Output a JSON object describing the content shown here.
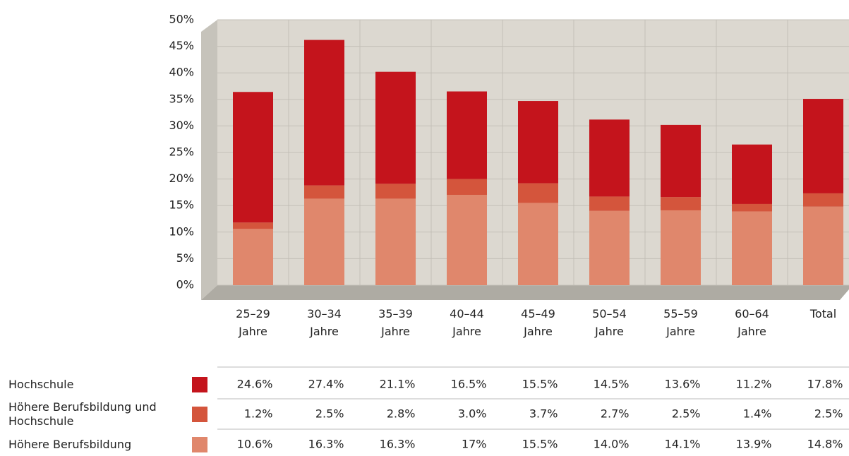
{
  "chart_data": {
    "type": "stacked_bar",
    "categories": [
      "25–29 Jahre",
      "30–34 Jahre",
      "35–39 Jahre",
      "40–44 Jahre",
      "45–49 Jahre",
      "50–54 Jahre",
      "55–59 Jahre",
      "60–64 Jahre",
      "Total"
    ],
    "series": [
      {
        "name": "Hochschule",
        "color": "#c4141c",
        "values": [
          24.6,
          27.4,
          21.1,
          16.5,
          15.5,
          14.5,
          13.6,
          11.2,
          17.8
        ],
        "value_labels": [
          "24.6%",
          "27.4%",
          "21.1%",
          "16.5%",
          "15.5%",
          "14.5%",
          "13.6%",
          "11.2%",
          "17.8%"
        ]
      },
      {
        "name": "Höhere Berufsbildung und Hochschule",
        "color": "#d4553c",
        "values": [
          1.2,
          2.5,
          2.8,
          3.0,
          3.7,
          2.7,
          2.5,
          1.4,
          2.5
        ],
        "value_labels": [
          "1.2%",
          "2.5%",
          "2.8%",
          "3.0%",
          "3.7%",
          "2.7%",
          "2.5%",
          "1.4%",
          "2.5%"
        ]
      },
      {
        "name": "Höhere Berufsbildung",
        "color": "#e0876c",
        "values": [
          10.6,
          16.3,
          16.3,
          17,
          15.5,
          14.0,
          14.1,
          13.9,
          14.8
        ],
        "value_labels": [
          "10.6%",
          "16.3%",
          "16.3%",
          "17%",
          "15.5%",
          "14.0%",
          "14.1%",
          "13.9%",
          "14.8%"
        ]
      }
    ],
    "ylim": [
      0,
      50
    ],
    "yticks": [
      {
        "value": 0,
        "label": "0%"
      },
      {
        "value": 5,
        "label": "5%"
      },
      {
        "value": 10,
        "label": "10%"
      },
      {
        "value": 15,
        "label": "15%"
      },
      {
        "value": 20,
        "label": "20%"
      },
      {
        "value": 25,
        "label": "25%"
      },
      {
        "value": 30,
        "label": "30%"
      },
      {
        "value": 35,
        "label": "35%"
      },
      {
        "value": 40,
        "label": "40%"
      },
      {
        "value": 45,
        "label": "45%"
      },
      {
        "value": 50,
        "label": "50%"
      }
    ],
    "grid": true,
    "stacked": true
  }
}
